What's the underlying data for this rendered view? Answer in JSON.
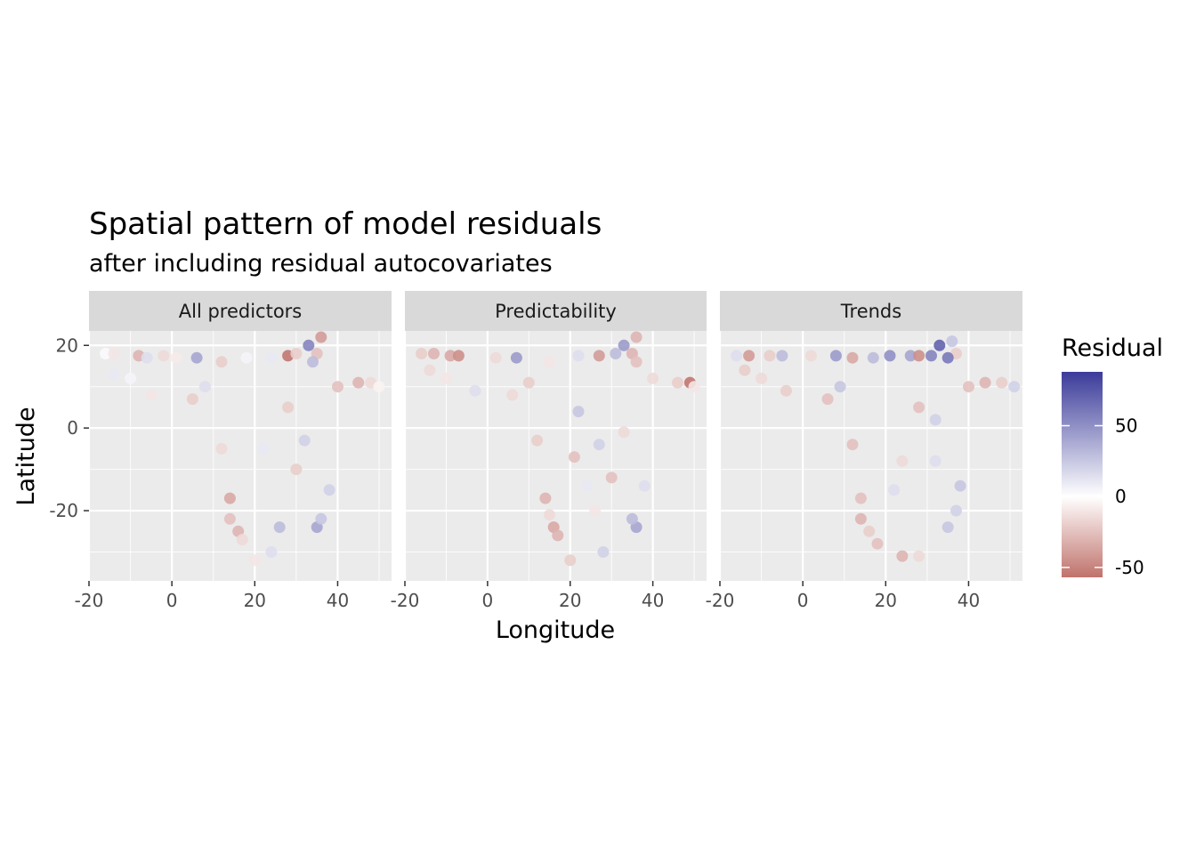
{
  "chart_data": {
    "type": "scatter",
    "title": "Spatial pattern of model residuals",
    "subtitle": "after including residual autocovariates",
    "xlabel": "Longitude",
    "ylabel": "Latitude",
    "xlim": [
      -20,
      53
    ],
    "ylim": [
      -37,
      23.5
    ],
    "x_ticks": [
      -20,
      0,
      20,
      40
    ],
    "y_ticks": [
      20,
      0,
      -20
    ],
    "x_tick_labels": [
      "-20",
      "0",
      "20",
      "40"
    ],
    "y_tick_labels": [
      "20",
      "0",
      "-20"
    ],
    "grid": true,
    "facets": [
      "All predictors",
      "Predictability",
      "Trends"
    ],
    "legend": {
      "title": "Residual",
      "position": "right",
      "limits": [
        -57,
        88
      ],
      "breaks": [
        50,
        0,
        -50
      ],
      "break_labels": [
        "50",
        "0",
        "-50"
      ],
      "low_color": "#c0726c",
      "mid_color": "#ffffff",
      "high_color": "#3b3b9a"
    },
    "colors": {
      "panel_background": "#ebebeb",
      "grid_major": "#ffffff",
      "strip_background": "#d9d9d9"
    },
    "points": [
      [
        [
          -16,
          18,
          2
        ],
        [
          -14,
          18,
          -10
        ],
        [
          -8,
          17.5,
          -30
        ],
        [
          -6,
          17,
          15
        ],
        [
          -2,
          17.5,
          -15
        ],
        [
          1,
          17,
          -8
        ],
        [
          6,
          17,
          40
        ],
        [
          12,
          16,
          -20
        ],
        [
          18,
          17,
          5
        ],
        [
          24,
          17,
          10
        ],
        [
          28,
          17.5,
          -55
        ],
        [
          30,
          18,
          -20
        ],
        [
          33,
          20,
          55
        ],
        [
          36,
          22,
          -40
        ],
        [
          35,
          18,
          -25
        ],
        [
          34,
          16,
          30
        ],
        [
          40,
          10,
          -25
        ],
        [
          45,
          11,
          -30
        ],
        [
          48,
          11,
          -15
        ],
        [
          50,
          10,
          -5
        ],
        [
          14,
          -17,
          -35
        ],
        [
          14,
          -22,
          -25
        ],
        [
          16,
          -25,
          -30
        ],
        [
          17,
          -27,
          -15
        ],
        [
          35,
          -24,
          40
        ],
        [
          36,
          -22,
          25
        ],
        [
          38,
          -15,
          20
        ],
        [
          26,
          -24,
          30
        ],
        [
          24,
          -30,
          15
        ],
        [
          20,
          -32,
          -10
        ],
        [
          30,
          -10,
          -20
        ],
        [
          12,
          -5,
          -15
        ],
        [
          22,
          -5,
          10
        ],
        [
          28,
          5,
          -20
        ],
        [
          32,
          -3,
          20
        ],
        [
          -10,
          12,
          5
        ],
        [
          -5,
          8,
          -10
        ],
        [
          5,
          7,
          -20
        ],
        [
          8,
          10,
          15
        ],
        [
          -14,
          13,
          10
        ]
      ],
      [
        [
          -16,
          18,
          -20
        ],
        [
          -13,
          18,
          -30
        ],
        [
          -9,
          17.5,
          -35
        ],
        [
          -7,
          17.5,
          -45
        ],
        [
          2,
          17,
          -15
        ],
        [
          7,
          17,
          45
        ],
        [
          15,
          16,
          -10
        ],
        [
          22,
          17.5,
          15
        ],
        [
          27,
          17.5,
          -40
        ],
        [
          31,
          18,
          30
        ],
        [
          33,
          20,
          45
        ],
        [
          36,
          22,
          -30
        ],
        [
          35,
          18,
          -30
        ],
        [
          36,
          16,
          -25
        ],
        [
          40,
          12,
          -15
        ],
        [
          46,
          11,
          -20
        ],
        [
          49,
          11,
          -55
        ],
        [
          50,
          10,
          -10
        ],
        [
          14,
          -17,
          -30
        ],
        [
          15,
          -21,
          -15
        ],
        [
          16,
          -24,
          -35
        ],
        [
          17,
          -26,
          -30
        ],
        [
          20,
          -32,
          -20
        ],
        [
          28,
          -30,
          20
        ],
        [
          36,
          -24,
          40
        ],
        [
          35,
          -22,
          30
        ],
        [
          38,
          -14,
          15
        ],
        [
          30,
          -12,
          -25
        ],
        [
          21,
          -7,
          -25
        ],
        [
          12,
          -3,
          -20
        ],
        [
          27,
          -4,
          20
        ],
        [
          33,
          -1,
          -15
        ],
        [
          -10,
          12,
          -10
        ],
        [
          -3,
          9,
          15
        ],
        [
          6,
          8,
          -15
        ],
        [
          10,
          11,
          -20
        ],
        [
          -14,
          14,
          -15
        ],
        [
          22,
          4,
          25
        ],
        [
          26,
          -20,
          -10
        ],
        [
          24,
          -14,
          10
        ]
      ],
      [
        [
          -16,
          17.5,
          15
        ],
        [
          -13,
          17.5,
          -40
        ],
        [
          -8,
          17.5,
          -20
        ],
        [
          -5,
          17.5,
          30
        ],
        [
          2,
          17.5,
          -15
        ],
        [
          8,
          17.5,
          45
        ],
        [
          12,
          17,
          -35
        ],
        [
          17,
          17,
          30
        ],
        [
          21,
          17.5,
          50
        ],
        [
          26,
          17.5,
          40
        ],
        [
          28,
          17.5,
          -45
        ],
        [
          31,
          17.5,
          55
        ],
        [
          33,
          20,
          70
        ],
        [
          36,
          21,
          25
        ],
        [
          37,
          18,
          -20
        ],
        [
          35,
          17,
          60
        ],
        [
          40,
          10,
          -25
        ],
        [
          44,
          11,
          -30
        ],
        [
          48,
          11,
          -20
        ],
        [
          51,
          10,
          20
        ],
        [
          14,
          -17,
          -25
        ],
        [
          14,
          -22,
          -30
        ],
        [
          16,
          -25,
          -20
        ],
        [
          18,
          -28,
          -25
        ],
        [
          24,
          -31,
          -30
        ],
        [
          28,
          -31,
          -15
        ],
        [
          35,
          -24,
          25
        ],
        [
          37,
          -20,
          20
        ],
        [
          38,
          -14,
          25
        ],
        [
          32,
          -8,
          15
        ],
        [
          24,
          -8,
          -15
        ],
        [
          12,
          -4,
          -25
        ],
        [
          28,
          5,
          -25
        ],
        [
          32,
          2,
          20
        ],
        [
          -10,
          12,
          -15
        ],
        [
          -4,
          9,
          -20
        ],
        [
          6,
          7,
          -25
        ],
        [
          9,
          10,
          25
        ],
        [
          -14,
          14,
          -20
        ],
        [
          22,
          -15,
          15
        ]
      ]
    ]
  }
}
